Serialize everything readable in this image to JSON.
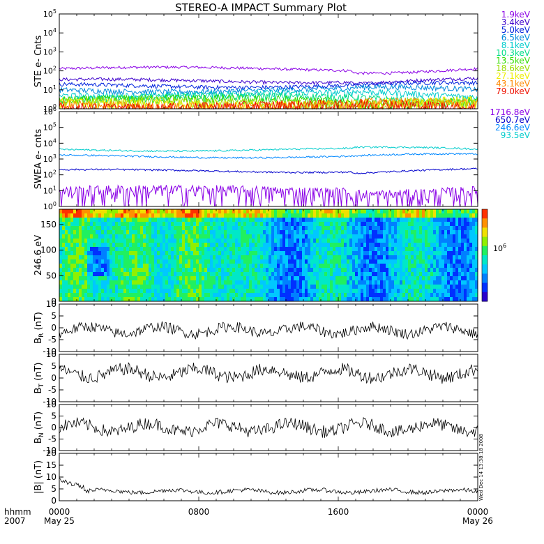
{
  "title": "STEREO-A IMPACT Summary Plot",
  "chart_data": {
    "type": "line",
    "title": "STEREO-A IMPACT Summary Plot",
    "x_axis": {
      "ticks": [
        {
          "hour": 0,
          "label": "0000",
          "sub": "May 25"
        },
        {
          "hour": 8,
          "label": "0800",
          "sub": ""
        },
        {
          "hour": 16,
          "label": "1600",
          "sub": ""
        },
        {
          "hour": 24,
          "label": "0000",
          "sub": "May 26"
        }
      ],
      "range_hours": [
        0,
        24
      ],
      "left_label_top": "hhmm",
      "left_label_bottom": "2007"
    },
    "timestamp": "Wed Dec 14 13:38:18 2008",
    "panels": [
      {
        "id": "ste",
        "ylabel": "STE e- Cnts",
        "log": true,
        "ylim": [
          1,
          100000
        ],
        "tick_exps": [
          0,
          1,
          2,
          3,
          4,
          5
        ],
        "series": [
          {
            "name": "1.9keV",
            "color": "#8a00e6",
            "base": 130,
            "noise": 0.04
          },
          {
            "name": "3.4keV",
            "color": "#3d00cc",
            "base": 30,
            "noise": 0.05
          },
          {
            "name": "5.0keV",
            "color": "#0022dd",
            "base": 17,
            "noise": 0.06
          },
          {
            "name": "6.5keV",
            "color": "#0088dd",
            "base": 10,
            "noise": 0.08
          },
          {
            "name": "8.1keV",
            "color": "#00cccc",
            "base": 6,
            "noise": 0.1
          },
          {
            "name": "10.3keV",
            "color": "#00dd88",
            "base": 4,
            "noise": 0.12
          },
          {
            "name": "13.5keV",
            "color": "#33dd00",
            "base": 3,
            "noise": 0.14
          },
          {
            "name": "18.6keV",
            "color": "#99dd00",
            "base": 2.3,
            "noise": 0.16
          },
          {
            "name": "27.1keV",
            "color": "#eeee00",
            "base": 1.8,
            "noise": 0.18
          },
          {
            "name": "43.1keV",
            "color": "#ff8800",
            "base": 1.5,
            "noise": 0.2
          },
          {
            "name": "79.0keV",
            "color": "#ee1100",
            "base": 1.3,
            "noise": 0.22
          }
        ]
      },
      {
        "id": "swea",
        "ylabel": "SWEA e- cnts",
        "log": true,
        "ylim": [
          1,
          1000000
        ],
        "tick_exps": [
          0,
          1,
          2,
          3,
          4,
          5,
          6
        ],
        "series": [
          {
            "name": "1716.8eV",
            "color": "#8a00e6",
            "base": 9,
            "noise": 0.28
          },
          {
            "name": "650.7eV",
            "color": "#0000cc",
            "base": 180,
            "noise": 0.03
          },
          {
            "name": "246.6eV",
            "color": "#0088ff",
            "base": 1500,
            "noise": 0.03
          },
          {
            "name": "93.5eV",
            "color": "#00cccc",
            "base": 4000,
            "noise": 0.03
          }
        ]
      },
      {
        "id": "pad",
        "type": "heatmap",
        "ylabel": "246.6 eV",
        "ylim": [
          0,
          180
        ],
        "yticks": [
          0,
          50,
          100,
          150
        ],
        "colorbar_label": "10",
        "colorbar_exp": "6"
      },
      {
        "id": "br",
        "ylabel": "B",
        "ylabel_sub": "R",
        "ylabel_unit": "(nT)",
        "ylim": [
          -10,
          10
        ],
        "yticks": [
          -10,
          -5,
          0,
          5,
          10
        ],
        "base": -1,
        "amp": 2.5
      },
      {
        "id": "bt",
        "ylabel": "B",
        "ylabel_sub": "T",
        "ylabel_unit": "(nT)",
        "ylim": [
          -10,
          10
        ],
        "yticks": [
          -10,
          -5,
          0,
          5,
          10
        ],
        "base": 2,
        "amp": 3
      },
      {
        "id": "bn",
        "ylabel": "B",
        "ylabel_sub": "N",
        "ylabel_unit": "(nT)",
        "ylim": [
          -10,
          10
        ],
        "yticks": [
          -10,
          -5,
          0,
          5,
          10
        ],
        "base": 0,
        "amp": 3
      },
      {
        "id": "bmag",
        "ylabel": "|B| (nT)",
        "ylim": [
          0,
          20
        ],
        "yticks": [
          0,
          5,
          10,
          15,
          20
        ],
        "base": 4,
        "amp": 1
      }
    ]
  }
}
